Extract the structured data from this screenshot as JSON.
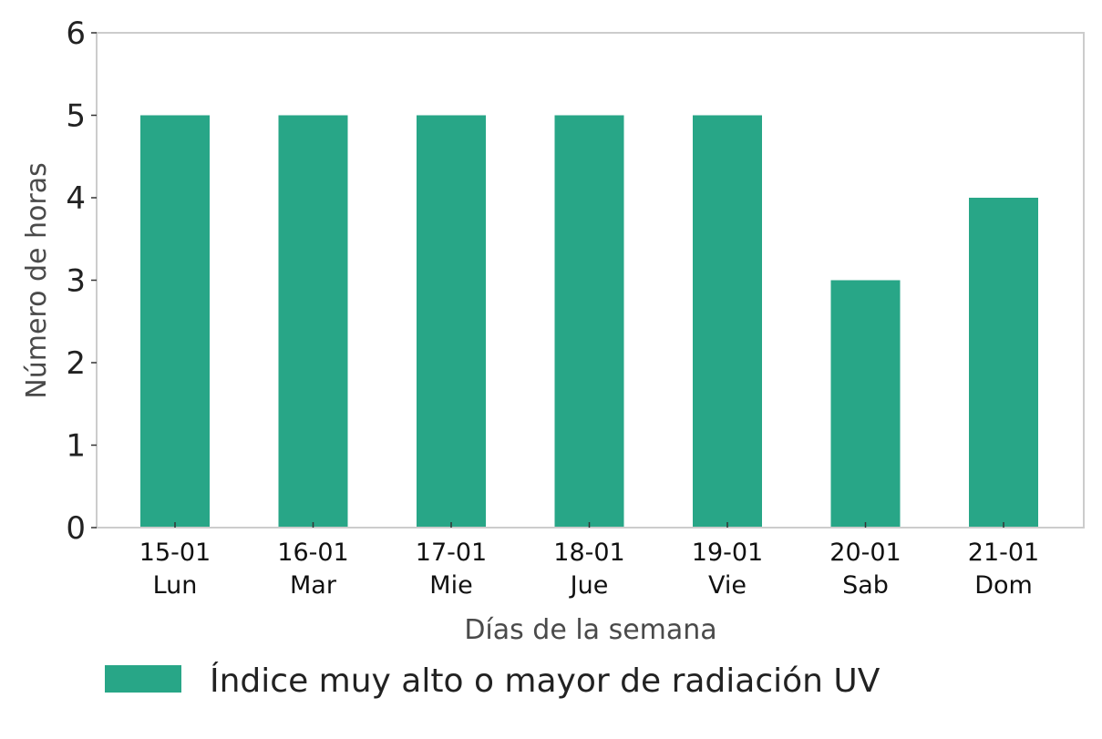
{
  "chart_data": {
    "type": "bar",
    "title": "",
    "categories": [
      [
        "15-01",
        "Lun"
      ],
      [
        "16-01",
        "Mar"
      ],
      [
        "17-01",
        "Mie"
      ],
      [
        "18-01",
        "Jue"
      ],
      [
        "19-01",
        "Vie"
      ],
      [
        "20-01",
        "Sab"
      ],
      [
        "21-01",
        "Dom"
      ]
    ],
    "series": [
      {
        "name": "Índice muy alto o mayor de radiación UV",
        "values": [
          5,
          5,
          5,
          5,
          5,
          3,
          4
        ],
        "color": "#28a687"
      }
    ],
    "xlabel": "Días de la semana",
    "ylabel": "Número de horas",
    "ylim": [
      0,
      6
    ],
    "yticks": [
      0,
      1,
      2,
      3,
      4,
      5,
      6
    ],
    "grid": false,
    "legend_position": "bottom-left"
  },
  "colors": {
    "bar": "#28a687",
    "frame": "#cccccc",
    "tick_text": "#222222",
    "axis_label": "#4a4a4a"
  }
}
